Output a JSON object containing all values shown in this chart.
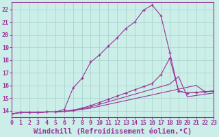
{
  "xlabel": "Windchill (Refroidissement éolien,°C)",
  "background_color": "#cceee8",
  "grid_color": "#aad4ce",
  "line_color": "#993399",
  "xlim": [
    0,
    23
  ],
  "ylim": [
    13.5,
    22.6
  ],
  "xticks": [
    0,
    1,
    2,
    3,
    4,
    5,
    6,
    7,
    8,
    9,
    10,
    11,
    12,
    13,
    14,
    15,
    16,
    17,
    18,
    19,
    20,
    21,
    22,
    23
  ],
  "yticks": [
    14,
    15,
    16,
    17,
    18,
    19,
    20,
    21,
    22
  ],
  "curves": [
    {
      "x": [
        0,
        1,
        2,
        3,
        4,
        5,
        6,
        7,
        8,
        9,
        10,
        11,
        12,
        13,
        14,
        15,
        16,
        17,
        18,
        19,
        20,
        21,
        22,
        23
      ],
      "y": [
        13.75,
        13.85,
        13.85,
        13.85,
        13.9,
        13.9,
        14.1,
        15.8,
        16.55,
        17.85,
        18.4,
        19.1,
        19.75,
        20.5,
        21.0,
        21.95,
        22.35,
        21.5,
        18.6,
        15.55,
        15.4,
        15.45,
        15.5,
        15.55
      ],
      "marker": "+"
    },
    {
      "x": [
        0,
        1,
        2,
        3,
        4,
        5,
        6,
        7,
        8,
        9,
        10,
        11,
        12,
        13,
        14,
        15,
        16,
        17,
        18,
        19,
        20,
        21,
        22,
        23
      ],
      "y": [
        13.75,
        13.85,
        13.85,
        13.85,
        13.9,
        13.9,
        13.95,
        14.05,
        14.2,
        14.4,
        14.65,
        14.9,
        15.15,
        15.4,
        15.65,
        15.9,
        16.15,
        16.85,
        18.15,
        15.55,
        15.4,
        15.45,
        15.5,
        15.55
      ],
      "marker": "+"
    },
    {
      "x": [
        0,
        1,
        2,
        3,
        4,
        5,
        6,
        7,
        8,
        9,
        10,
        11,
        12,
        13,
        14,
        15,
        16,
        17,
        18,
        19,
        20,
        21,
        22,
        23
      ],
      "y": [
        13.75,
        13.85,
        13.85,
        13.85,
        13.9,
        13.9,
        13.95,
        14.0,
        14.15,
        14.3,
        14.5,
        14.7,
        14.9,
        15.1,
        15.3,
        15.5,
        15.7,
        15.9,
        16.1,
        16.7,
        15.1,
        15.2,
        15.3,
        15.4
      ],
      "marker": null
    },
    {
      "x": [
        0,
        1,
        2,
        3,
        4,
        5,
        6,
        7,
        8,
        9,
        10,
        11,
        12,
        13,
        14,
        15,
        16,
        17,
        18,
        19,
        20,
        21,
        22,
        23
      ],
      "y": [
        13.75,
        13.85,
        13.85,
        13.85,
        13.9,
        13.9,
        13.95,
        14.0,
        14.1,
        14.2,
        14.35,
        14.5,
        14.65,
        14.8,
        14.95,
        15.1,
        15.25,
        15.4,
        15.55,
        15.7,
        15.85,
        16.0,
        15.5,
        15.55
      ],
      "marker": null
    }
  ],
  "tick_fontsize": 6,
  "xlabel_fontsize": 7.5
}
